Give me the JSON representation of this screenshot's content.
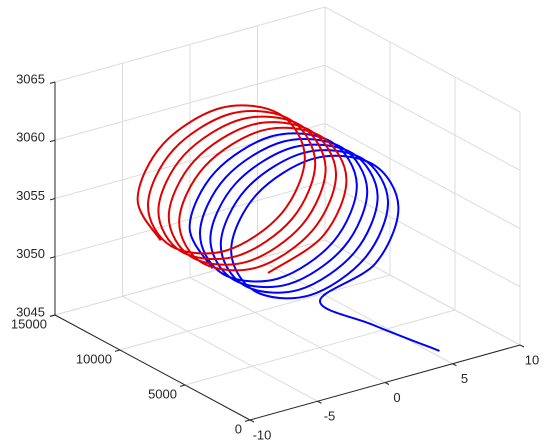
{
  "chart_data": {
    "type": "line3d",
    "xlim": [
      -10,
      10
    ],
    "xticks": [
      -10,
      -5,
      0,
      5,
      10
    ],
    "ylim": [
      0,
      15000
    ],
    "yticks": [
      0,
      5000,
      10000,
      15000
    ],
    "zlim": [
      3045,
      3065
    ],
    "zticks": [
      3045,
      3050,
      3055,
      3060,
      3065
    ],
    "grid": true,
    "series": [
      {
        "color": "#0000ff",
        "x": [
          5,
          2,
          0,
          4.2,
          6,
          4.2,
          0,
          -4.2,
          -6,
          -4.2,
          0,
          4.2,
          6,
          4.2,
          0,
          -4.2,
          -6,
          -4.2,
          0,
          4.2,
          6,
          4.2,
          0,
          -4.2,
          -6,
          -4.2,
          0,
          4.2,
          6,
          4.2,
          0,
          -4.2,
          -6,
          -4.2,
          0,
          4.2,
          6,
          4.2,
          0,
          -4.2,
          -6,
          -4.2
        ],
        "y": [
          1000,
          3000,
          5000,
          5100,
          5200,
          5300,
          5400,
          5500,
          5600,
          5700,
          5800,
          5900,
          6000,
          6100,
          6200,
          6300,
          6400,
          6500,
          6600,
          6700,
          6800,
          6900,
          7000,
          7100,
          7200,
          7300,
          7400,
          7500,
          7600,
          7700,
          7800,
          7900,
          8000,
          8100,
          8200,
          8300,
          8400,
          8500,
          8600,
          8700,
          8800,
          8900
        ],
        "z": [
          3045.5,
          3047.5,
          3049,
          3050.8,
          3055,
          3059.2,
          3061,
          3059.2,
          3055,
          3050.8,
          3049,
          3050.8,
          3055,
          3059.2,
          3061,
          3059.2,
          3055,
          3050.8,
          3049,
          3050.8,
          3055,
          3059.2,
          3061,
          3059.2,
          3055,
          3050.8,
          3049,
          3050.8,
          3055,
          3059.2,
          3061,
          3059.2,
          3055,
          3050.8,
          3049,
          3050.8,
          3055,
          3059.2,
          3061,
          3059.2,
          3055,
          3050.8
        ]
      },
      {
        "color": "#e00000",
        "x": [
          0,
          4.2,
          6,
          4.2,
          0,
          -4.2,
          -6,
          -4.2,
          0,
          4.2,
          6,
          4.2,
          0,
          -4.2,
          -6,
          -4.2,
          0,
          4.2,
          6,
          4.2,
          0,
          -4.2,
          -6,
          -4.2,
          0,
          4.2,
          6,
          4.2,
          0,
          -4.2,
          -6,
          -4.2,
          0,
          4.2,
          6,
          4.2,
          0,
          -4.2,
          -6,
          -4.2
        ],
        "y": [
          9000,
          9100,
          9200,
          9300,
          9400,
          9500,
          9600,
          9700,
          9800,
          9900,
          10000,
          10100,
          10200,
          10300,
          10400,
          10500,
          10600,
          10700,
          10800,
          10900,
          11000,
          11100,
          11200,
          11300,
          11400,
          11500,
          11600,
          11700,
          11800,
          11900,
          12000,
          12100,
          12200,
          12300,
          12400,
          12500,
          12600,
          12700,
          12800,
          12900
        ],
        "z": [
          3049,
          3050.8,
          3055,
          3059.2,
          3061,
          3059.2,
          3055,
          3050.8,
          3049,
          3050.8,
          3055,
          3059.2,
          3061,
          3059.2,
          3055,
          3050.8,
          3049,
          3050.8,
          3055,
          3059.2,
          3061,
          3059.2,
          3055,
          3050.8,
          3049,
          3050.8,
          3055,
          3059.2,
          3061,
          3059.2,
          3055,
          3050.8,
          3049,
          3050.8,
          3055,
          3059.2,
          3061,
          3059.2,
          3055,
          3050.8
        ]
      }
    ]
  }
}
